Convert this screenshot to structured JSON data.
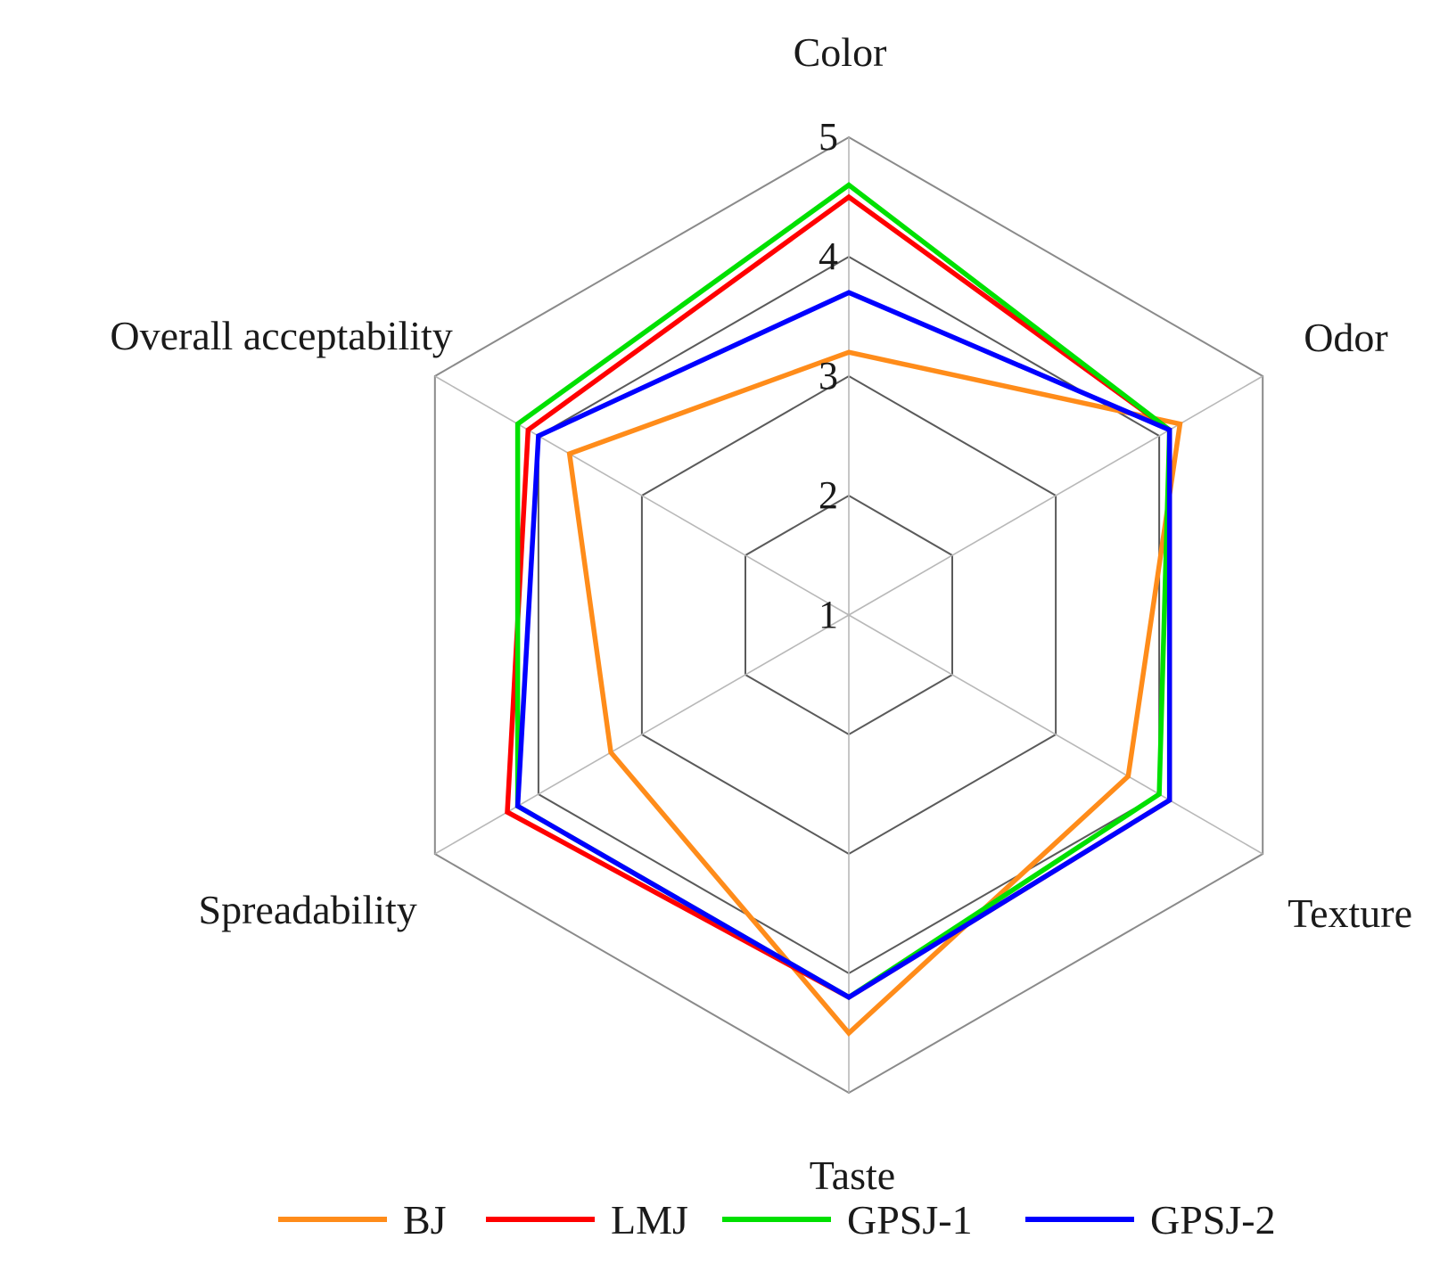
{
  "chart_data": {
    "type": "radar",
    "title": "",
    "axes": [
      "Color",
      "Odor",
      "Texture",
      "Taste",
      "Spreadability",
      "Overall acceptability"
    ],
    "rlim": [
      1,
      5
    ],
    "ticks": [
      "1",
      "2",
      "3",
      "4",
      "5"
    ],
    "grid": true,
    "legend_position": "bottom",
    "series": [
      {
        "name": "BJ",
        "color": "#ff8c1a",
        "values": [
          3.2,
          4.2,
          3.7,
          4.5,
          3.3,
          3.7
        ]
      },
      {
        "name": "LMJ",
        "color": "#ff0000",
        "values": [
          4.5,
          4.1,
          4.1,
          4.2,
          4.3,
          4.1
        ]
      },
      {
        "name": "GPSJ-1",
        "color": "#00e000",
        "values": [
          4.6,
          4.1,
          4.0,
          4.2,
          4.2,
          4.2
        ]
      },
      {
        "name": "GPSJ-2",
        "color": "#0000ff",
        "values": [
          3.7,
          4.1,
          4.1,
          4.2,
          4.2,
          4.0
        ]
      }
    ]
  }
}
